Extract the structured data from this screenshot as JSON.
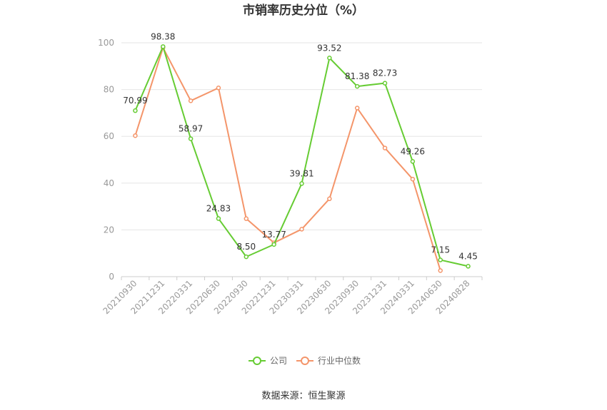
{
  "chart_data": {
    "type": "line",
    "title": "市销率历史分位（%）",
    "categories": [
      "20210930",
      "20211231",
      "20220331",
      "20220630",
      "20220930",
      "20221231",
      "20230331",
      "20230630",
      "20230930",
      "20231231",
      "20240331",
      "20240630",
      "20240828"
    ],
    "ylim": [
      0,
      100
    ],
    "yticks": [
      0,
      20,
      40,
      60,
      80,
      100
    ],
    "grid": true,
    "legend_position": "bottom",
    "series": [
      {
        "name": "公司",
        "color": "#66cc33",
        "values": [
          70.99,
          98.38,
          58.97,
          24.83,
          8.5,
          13.77,
          39.81,
          93.52,
          81.38,
          82.73,
          49.26,
          7.15,
          4.45
        ],
        "labels": [
          "70.99",
          "98.38",
          "58.97",
          "24.83",
          "8.50",
          "13.77",
          "39.81",
          "93.52",
          "81.38",
          "82.73",
          "49.26",
          "7.15",
          "4.45"
        ]
      },
      {
        "name": "行业中位数",
        "color": "#f4956a",
        "values": [
          60.3,
          97.9,
          75.2,
          80.7,
          24.8,
          14.5,
          20.3,
          33.3,
          72.1,
          55.0,
          41.7,
          2.6,
          null
        ]
      }
    ]
  },
  "source": "数据来源：恒生聚源"
}
